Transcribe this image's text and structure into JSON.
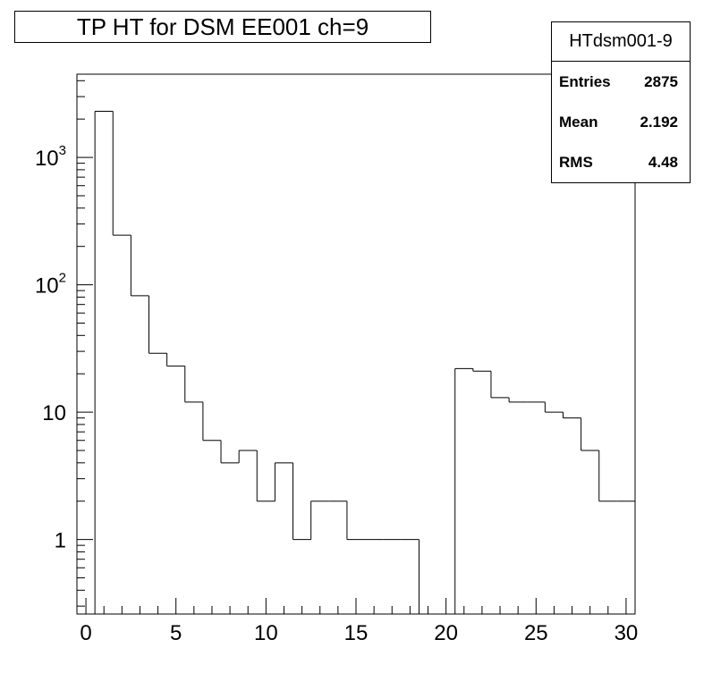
{
  "title": "TP HT for DSM EE001 ch=9",
  "stats": {
    "name": "HTdsm001-9",
    "rows": [
      {
        "label": "Entries",
        "value": "2875"
      },
      {
        "label": "Mean",
        "value": "2.192"
      },
      {
        "label": "RMS",
        "value": "4.48"
      }
    ]
  },
  "chart_data": {
    "type": "bar",
    "subtype": "histogram-step",
    "title": "TP HT for DSM EE001 ch=9",
    "xlabel": "",
    "ylabel": "",
    "xlim": [
      -0.5,
      30.5
    ],
    "ylim": [
      0.26,
      4500
    ],
    "y_scale": "log",
    "grid": false,
    "legend": "none",
    "bin_width": 1,
    "bins": [
      {
        "x": 0,
        "y": 0
      },
      {
        "x": 1,
        "y": 2300
      },
      {
        "x": 2,
        "y": 245
      },
      {
        "x": 3,
        "y": 82
      },
      {
        "x": 4,
        "y": 29
      },
      {
        "x": 5,
        "y": 23
      },
      {
        "x": 6,
        "y": 12
      },
      {
        "x": 7,
        "y": 6
      },
      {
        "x": 8,
        "y": 4
      },
      {
        "x": 9,
        "y": 5
      },
      {
        "x": 10,
        "y": 2
      },
      {
        "x": 11,
        "y": 4
      },
      {
        "x": 12,
        "y": 1
      },
      {
        "x": 13,
        "y": 2
      },
      {
        "x": 14,
        "y": 2
      },
      {
        "x": 15,
        "y": 1
      },
      {
        "x": 16,
        "y": 1
      },
      {
        "x": 17,
        "y": 1
      },
      {
        "x": 18,
        "y": 1
      },
      {
        "x": 19,
        "y": 0
      },
      {
        "x": 20,
        "y": 0
      },
      {
        "x": 21,
        "y": 22
      },
      {
        "x": 22,
        "y": 21
      },
      {
        "x": 23,
        "y": 13
      },
      {
        "x": 24,
        "y": 12
      },
      {
        "x": 25,
        "y": 12
      },
      {
        "x": 26,
        "y": 10
      },
      {
        "x": 27,
        "y": 9
      },
      {
        "x": 28,
        "y": 5
      },
      {
        "x": 29,
        "y": 2
      },
      {
        "x": 30,
        "y": 2
      }
    ],
    "x_ticks": [
      "0",
      "5",
      "10",
      "15",
      "20",
      "25",
      "30"
    ],
    "y_ticks": [
      {
        "value": 1,
        "base": "1",
        "exp": ""
      },
      {
        "value": 10,
        "base": "10",
        "exp": ""
      },
      {
        "value": 100,
        "base": "10",
        "exp": "2"
      },
      {
        "value": 1000,
        "base": "10",
        "exp": "3"
      }
    ]
  }
}
